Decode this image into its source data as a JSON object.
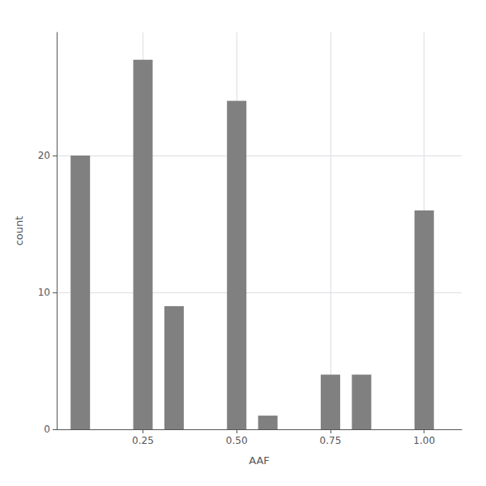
{
  "chart_data": {
    "type": "bar",
    "x": [
      0.083,
      0.25,
      0.333,
      0.5,
      0.583,
      0.75,
      0.833,
      1.0
    ],
    "values": [
      20,
      27,
      9,
      24,
      1,
      4,
      4,
      16
    ],
    "color": "#808080",
    "xlabel": "AAF",
    "ylabel": "count",
    "xlim": [
      0.02,
      1.1
    ],
    "xticks": [
      0.25,
      {
        "value": 0.5,
        "label": "0.50"
      },
      0.75,
      {
        "value": 1.0,
        "label": "1.00"
      }
    ],
    "ylim": [
      0,
      29
    ],
    "yticks": [
      0,
      10,
      20
    ],
    "grid": true
  }
}
